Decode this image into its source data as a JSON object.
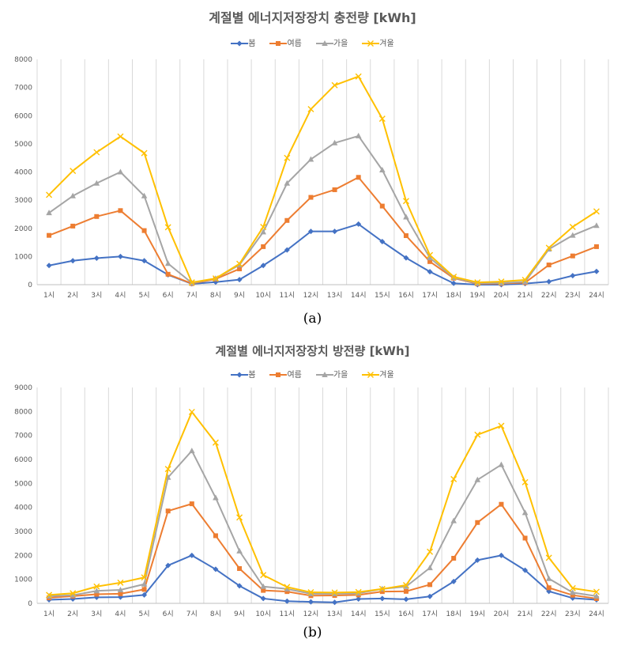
{
  "chart_data": [
    {
      "type": "line",
      "title": "계절별 에너지저장장치 충전량 [kWh]",
      "panel_label": "(a)",
      "categories": [
        "1시",
        "2시",
        "3시",
        "4시",
        "5시",
        "6시",
        "7시",
        "8시",
        "9시",
        "10시",
        "11시",
        "12시",
        "13시",
        "14시",
        "15시",
        "16시",
        "17시",
        "18시",
        "19시",
        "20시",
        "21시",
        "22시",
        "23시",
        "24시"
      ],
      "ylim": [
        0,
        8000
      ],
      "yticks": [
        0,
        1000,
        2000,
        3000,
        4000,
        5000,
        6000,
        7000,
        8000
      ],
      "grid": "vertical",
      "legend": "top",
      "series": [
        {
          "name": "봄",
          "color": "#4472C4",
          "marker": "diamond",
          "values": [
            680,
            850,
            940,
            1000,
            850,
            350,
            30,
            90,
            180,
            680,
            1230,
            1890,
            1890,
            2150,
            1530,
            950,
            460,
            50,
            0,
            0,
            40,
            110,
            320,
            470
          ]
        },
        {
          "name": "여름",
          "color": "#ED7D31",
          "marker": "square",
          "values": [
            1750,
            2080,
            2420,
            2630,
            1920,
            370,
            40,
            200,
            560,
            1350,
            2280,
            3100,
            3370,
            3810,
            2790,
            1740,
            820,
            230,
            30,
            40,
            70,
            700,
            1020,
            1350
          ]
        },
        {
          "name": "가을",
          "color": "#A5A5A5",
          "marker": "triangle",
          "values": [
            2550,
            3150,
            3600,
            4000,
            3150,
            750,
            60,
            220,
            700,
            1870,
            3600,
            4450,
            5030,
            5280,
            4070,
            2400,
            950,
            250,
            50,
            60,
            100,
            1260,
            1750,
            2100
          ]
        },
        {
          "name": "겨울",
          "color": "#FFC000",
          "marker": "x",
          "values": [
            3190,
            4040,
            4700,
            5260,
            4670,
            2040,
            80,
            220,
            740,
            2050,
            4500,
            6230,
            7080,
            7390,
            5890,
            2970,
            1050,
            280,
            80,
            110,
            170,
            1310,
            2050,
            2600
          ]
        }
      ]
    },
    {
      "type": "line",
      "title": "계절별 에너지저장장치 방전량 [kWh]",
      "panel_label": "(b)",
      "categories": [
        "1시",
        "2시",
        "3시",
        "4시",
        "5시",
        "6시",
        "7시",
        "8시",
        "9시",
        "10시",
        "11시",
        "12시",
        "13시",
        "14시",
        "15시",
        "16시",
        "17시",
        "18시",
        "19시",
        "20시",
        "21시",
        "22시",
        "23시",
        "24시"
      ],
      "ylim": [
        0,
        9000
      ],
      "yticks": [
        0,
        1000,
        2000,
        3000,
        4000,
        5000,
        6000,
        7000,
        8000,
        9000
      ],
      "grid": "vertical",
      "legend": "top",
      "series": [
        {
          "name": "봄",
          "color": "#4472C4",
          "marker": "diamond",
          "values": [
            150,
            180,
            250,
            260,
            350,
            1580,
            2000,
            1420,
            730,
            200,
            90,
            60,
            40,
            180,
            200,
            170,
            290,
            910,
            1800,
            2000,
            1380,
            500,
            220,
            150
          ]
        },
        {
          "name": "여름",
          "color": "#ED7D31",
          "marker": "square",
          "values": [
            230,
            300,
            380,
            400,
            580,
            3850,
            4150,
            2820,
            1450,
            540,
            490,
            320,
            330,
            350,
            490,
            500,
            780,
            1880,
            3370,
            4130,
            2720,
            650,
            340,
            200
          ]
        },
        {
          "name": "가을",
          "color": "#A5A5A5",
          "marker": "triangle",
          "values": [
            300,
            340,
            520,
            560,
            800,
            5250,
            6360,
            4400,
            2180,
            700,
            600,
            400,
            400,
            420,
            600,
            700,
            1480,
            3440,
            5150,
            5780,
            3780,
            1030,
            450,
            300
          ]
        },
        {
          "name": "겨울",
          "color": "#FFC000",
          "marker": "x",
          "values": [
            350,
            420,
            700,
            860,
            1080,
            5600,
            7980,
            6700,
            3580,
            1180,
            680,
            460,
            450,
            470,
            600,
            760,
            2150,
            5180,
            7030,
            7400,
            5050,
            1900,
            630,
            480
          ]
        }
      ]
    }
  ]
}
